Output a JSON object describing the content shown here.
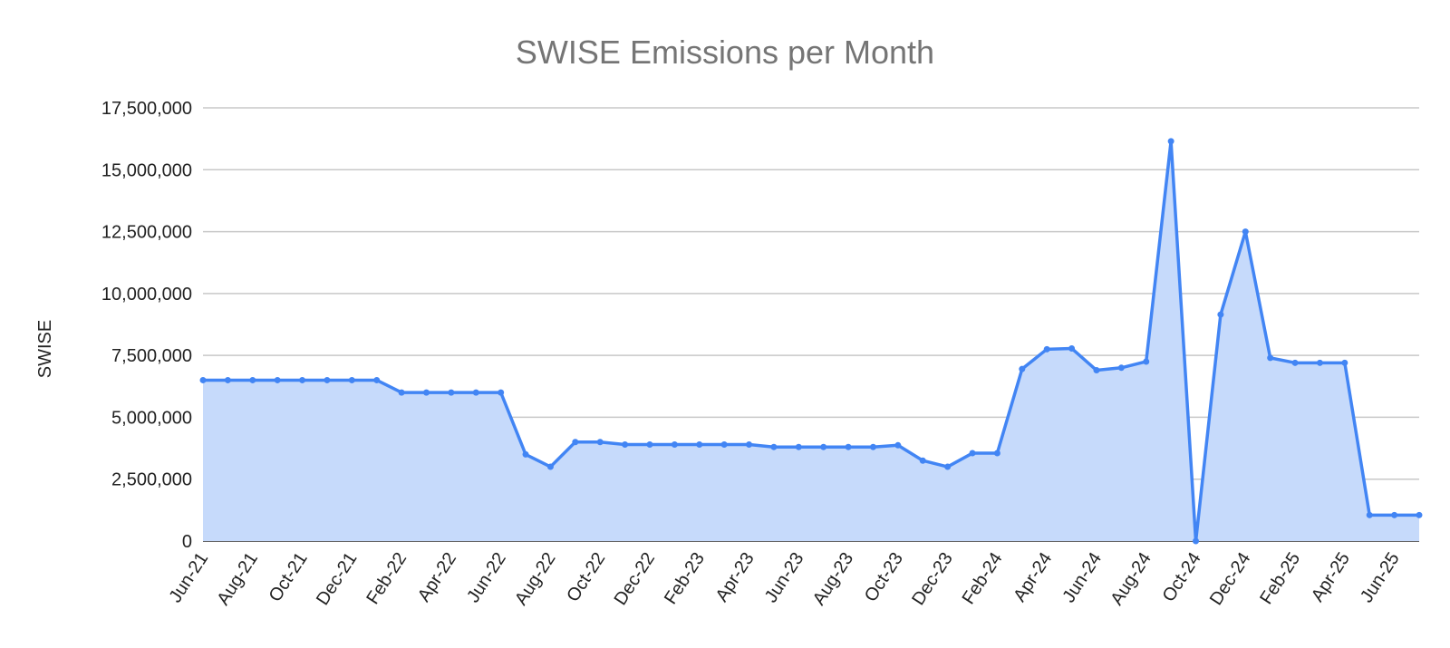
{
  "chart_data": {
    "type": "area",
    "title": "SWISE Emissions per Month",
    "xlabel": "",
    "ylabel": "SWISE",
    "ylim": [
      0,
      17500000
    ],
    "yticks": [
      0,
      2500000,
      5000000,
      7500000,
      10000000,
      12500000,
      15000000,
      17500000
    ],
    "ytick_labels": [
      "0",
      "2,500,000",
      "5,000,000",
      "7,500,000",
      "10,000,000",
      "12,500,000",
      "15,000,000",
      "17,500,000"
    ],
    "x": [
      "Jun-21",
      "Jul-21",
      "Aug-21",
      "Sep-21",
      "Oct-21",
      "Nov-21",
      "Dec-21",
      "Jan-22",
      "Feb-22",
      "Mar-22",
      "Apr-22",
      "May-22",
      "Jun-22",
      "Jul-22",
      "Aug-22",
      "Sep-22",
      "Oct-22",
      "Nov-22",
      "Dec-22",
      "Jan-23",
      "Feb-23",
      "Mar-23",
      "Apr-23",
      "May-23",
      "Jun-23",
      "Jul-23",
      "Aug-23",
      "Sep-23",
      "Oct-23",
      "Nov-23",
      "Dec-23",
      "Jan-24",
      "Feb-24",
      "Mar-24",
      "Apr-24",
      "May-24",
      "Jun-24",
      "Jul-24",
      "Aug-24",
      "Sep-24",
      "Oct-24",
      "Nov-24",
      "Dec-24",
      "Jan-25",
      "Feb-25",
      "Mar-25",
      "Apr-25",
      "May-25",
      "Jun-25",
      "Jul-25"
    ],
    "xtick_labels": [
      "Jun-21",
      "Aug-21",
      "Oct-21",
      "Dec-21",
      "Feb-22",
      "Apr-22",
      "Jun-22",
      "Aug-22",
      "Oct-22",
      "Dec-22",
      "Feb-23",
      "Apr-23",
      "Jun-23",
      "Aug-23",
      "Oct-23",
      "Dec-23",
      "Feb-24",
      "Apr-24",
      "Jun-24",
      "Aug-24",
      "Oct-24",
      "Dec-24",
      "Feb-25",
      "Apr-25",
      "Jun-25"
    ],
    "series": [
      {
        "values": [
          6500000,
          6500000,
          6500000,
          6500000,
          6500000,
          6500000,
          6500000,
          6500000,
          6000000,
          6000000,
          6000000,
          6000000,
          6000000,
          3500000,
          3000000,
          4000000,
          4000000,
          3900000,
          3900000,
          3900000,
          3900000,
          3900000,
          3900000,
          3800000,
          3800000,
          3800000,
          3800000,
          3800000,
          3870000,
          3250000,
          3000000,
          3550000,
          3550000,
          6950000,
          7750000,
          7780000,
          6900000,
          7000000,
          7250000,
          16150000,
          0,
          9150000,
          12500000,
          7400000,
          7200000,
          7200000,
          7200000,
          1050000,
          1050000,
          1050000
        ]
      }
    ],
    "colors": {
      "line": "#4285f4",
      "fill": "#c6dafb"
    },
    "grid": true,
    "legend": "none"
  }
}
